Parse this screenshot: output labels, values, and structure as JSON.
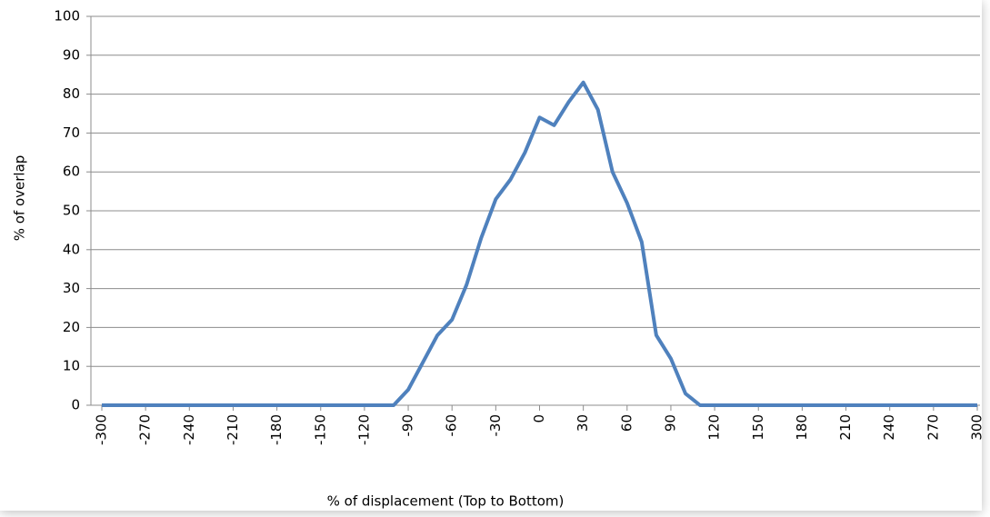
{
  "chart_data": {
    "type": "line",
    "y_label": "% of overlap",
    "x_label": "% of displacement (Top to Bottom)",
    "x": [
      -300,
      -290,
      -280,
      -270,
      -260,
      -250,
      -240,
      -230,
      -220,
      -210,
      -200,
      -190,
      -180,
      -170,
      -160,
      -150,
      -140,
      -130,
      -120,
      -110,
      -100,
      -90,
      -80,
      -70,
      -60,
      -50,
      -40,
      -30,
      -20,
      -10,
      0,
      10,
      20,
      30,
      40,
      50,
      60,
      70,
      80,
      90,
      100,
      110,
      120,
      130,
      140,
      150,
      160,
      170,
      180,
      190,
      200,
      210,
      220,
      230,
      240,
      250,
      260,
      270,
      280,
      290,
      300
    ],
    "series": [
      {
        "color": "#4f81bd",
        "values": [
          0,
          0,
          0,
          0,
          0,
          0,
          0,
          0,
          0,
          0,
          0,
          0,
          0,
          0,
          0,
          0,
          0,
          0,
          0,
          0,
          0,
          4,
          11,
          18,
          22,
          31,
          43,
          53,
          58,
          65,
          74,
          72,
          78,
          83,
          76,
          60,
          52,
          42,
          18,
          12,
          3,
          0,
          0,
          0,
          0,
          0,
          0,
          0,
          0,
          0,
          0,
          0,
          0,
          0,
          0,
          0,
          0,
          0,
          0,
          0,
          0
        ]
      }
    ],
    "xlim": [
      -300,
      300
    ],
    "xticks": [
      -300,
      -270,
      -240,
      -210,
      -180,
      -150,
      -120,
      -90,
      -60,
      -30,
      0,
      30,
      60,
      90,
      120,
      150,
      180,
      210,
      240,
      270,
      300
    ],
    "ylim": [
      0,
      100
    ],
    "yticks": [
      0,
      10,
      20,
      30,
      40,
      50,
      60,
      70,
      80,
      90,
      100
    ],
    "grid": true
  }
}
